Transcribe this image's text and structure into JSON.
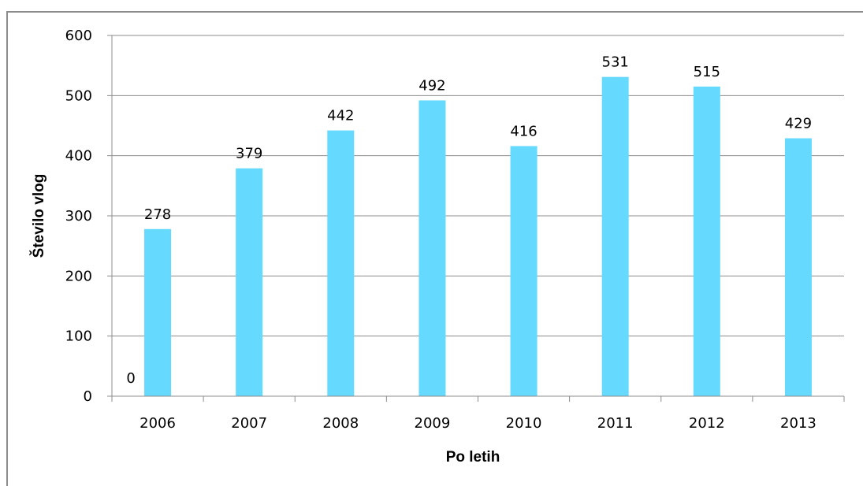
{
  "chart_data": {
    "type": "bar",
    "title": "",
    "xlabel": "Po letih",
    "ylabel": "Število vlog",
    "categories": [
      "2006",
      "2007",
      "2008",
      "2009",
      "2010",
      "2011",
      "2012",
      "2013"
    ],
    "series": [
      {
        "values": [
          278,
          379,
          442,
          492,
          416,
          531,
          515,
          429
        ],
        "color": "#66d9ff"
      }
    ],
    "extra_labels": [
      {
        "category": "2006",
        "text": "0"
      }
    ],
    "yticks": [
      "0",
      "100",
      "200",
      "300",
      "400",
      "500",
      "600"
    ],
    "ylim": [
      0,
      600
    ],
    "grid": true,
    "legend": "none"
  }
}
